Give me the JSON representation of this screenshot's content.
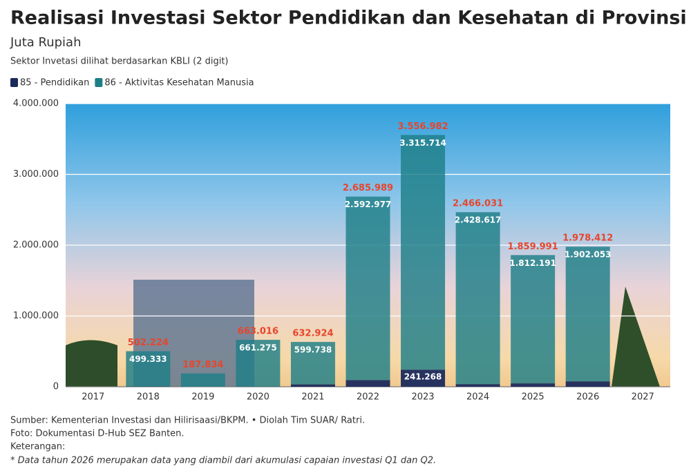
{
  "chart_data": {
    "type": "stacked-bar",
    "title": "Realisasi Investasi Sektor Pendidikan dan Kesehatan di Provinsi Banten",
    "subtitle": "Juta Rupiah",
    "note": "Sektor Invetasi dilihat berdasarkan KBLI (2 digit)",
    "categories": [
      "2017",
      "2018",
      "2019",
      "2020",
      "2021",
      "2022",
      "2023",
      "2024",
      "2025",
      "2026",
      "2027"
    ],
    "series": [
      {
        "name": "85 - Pendidikan",
        "color": "#1b2a5c",
        "values": [
          null,
          2891,
          0,
          1741,
          33186,
          93012,
          241268,
          37414,
          47800,
          76359,
          null
        ],
        "value_labels": [
          null,
          null,
          null,
          null,
          null,
          null,
          "241.268",
          null,
          null,
          null,
          null
        ]
      },
      {
        "name": "86 - Aktivitas Kesehatan Manusia",
        "color": "#1f7f87",
        "values": [
          null,
          499333,
          187834,
          661275,
          599738,
          2592977,
          3315714,
          2428617,
          1812191,
          1902053,
          null
        ],
        "value_labels": [
          null,
          "499.333",
          null,
          "661.275",
          "599.738",
          "2.592.977",
          "3.315.714",
          "2.428.617",
          "1.812.191",
          "1.902.053",
          null
        ]
      }
    ],
    "totals": {
      "color": "#e8452c",
      "values": [
        null,
        502224,
        187834,
        663016,
        632924,
        2685989,
        3556982,
        2466031,
        1859991,
        1978412,
        null
      ],
      "value_labels": [
        null,
        "502.224",
        "187.834",
        "663.016",
        "632.924",
        "2.685.989",
        "3.556.982",
        "2.466.031",
        "1.859.991",
        "1.978.412",
        null
      ]
    },
    "ylim": [
      0,
      4000000
    ],
    "yticks": [
      0,
      {
        "value": 1000000,
        "label": "1.000.000"
      },
      {
        "value": 2000000,
        "label": "2.000.000"
      },
      {
        "value": 3000000,
        "label": "3.000.000"
      },
      {
        "value": 4000000,
        "label": "4.000.000"
      }
    ],
    "grid": true,
    "footer": [
      "Sumber: Kementerian Investasi dan Hilirisaasi/BKPM. • Diolah Tim SUAR/ Ratri.",
      "Foto: Dokumentasi D-Hub SEZ Banten.",
      "Keterangan:"
    ],
    "footnote": "* Data tahun 2026 merupakan data yang diambil dari akumulasi capaian investasi Q1 dan Q2."
  }
}
